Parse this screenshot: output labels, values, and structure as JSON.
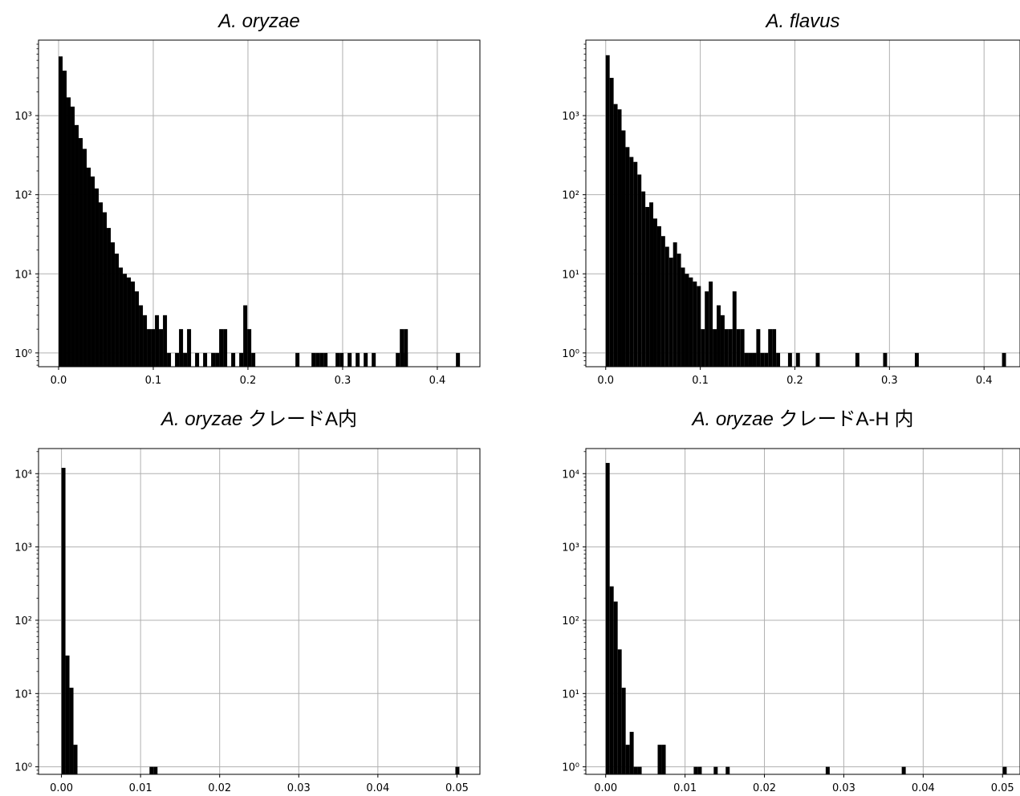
{
  "chart_data": [
    {
      "type": "bar",
      "title": "A. oryzae",
      "title_suffix": "",
      "y_scale": "log",
      "grid": true,
      "xlim": [
        -0.0212,
        0.445
      ],
      "ylim": [
        0.67,
        9000
      ],
      "xticks": [
        0.0,
        0.1,
        0.2,
        0.3,
        0.4
      ],
      "xtick_labels": [
        "0.0",
        "0.1",
        "0.2",
        "0.3",
        "0.4"
      ],
      "yticks": [
        1,
        10,
        100,
        1000
      ],
      "ytick_labels": [
        "10⁰",
        "10¹",
        "10²",
        "10³"
      ],
      "bin_width": 0.00424,
      "bins_x_start": [
        0.0,
        0.00424,
        0.00848,
        0.01272,
        0.01696,
        0.0212,
        0.02544,
        0.02968,
        0.03392,
        0.03816,
        0.0424,
        0.04664,
        0.05088,
        0.05512,
        0.05936,
        0.0636,
        0.06784,
        0.07208,
        0.07632,
        0.08056,
        0.0848,
        0.08904,
        0.09328,
        0.09752,
        0.10176,
        0.106,
        0.11024,
        0.11448,
        0.12296,
        0.1272,
        0.13144,
        0.13568,
        0.14416,
        0.15264,
        0.16112,
        0.16536,
        0.1696,
        0.17384,
        0.18232,
        0.1908,
        0.19504,
        0.19928,
        0.20352,
        0.25016,
        0.26712,
        0.27136,
        0.2756,
        0.27984,
        0.29256,
        0.2968,
        0.30528,
        0.31376,
        0.32224,
        0.33072,
        0.35616,
        0.3604,
        0.36464,
        0.3646,
        0.41968
      ],
      "counts": [
        5600,
        3700,
        1700,
        1300,
        760,
        520,
        380,
        220,
        170,
        120,
        80,
        60,
        38,
        25,
        18,
        12,
        10,
        9,
        8,
        6,
        4,
        3,
        2,
        2,
        3,
        2,
        3,
        1,
        1,
        2,
        1,
        2,
        1,
        1,
        1,
        1,
        2,
        2,
        1,
        1,
        4,
        2,
        1,
        1,
        1,
        1,
        1,
        1,
        1,
        1,
        1,
        1,
        1,
        1,
        1,
        2,
        2,
        1,
        1
      ]
    },
    {
      "type": "bar",
      "title": "A. flavus",
      "title_suffix": "",
      "y_scale": "log",
      "grid": true,
      "xlim": [
        -0.021,
        0.438
      ],
      "ylim": [
        0.67,
        9000
      ],
      "xticks": [
        0.0,
        0.1,
        0.2,
        0.3,
        0.4
      ],
      "xtick_labels": [
        "0.0",
        "0.1",
        "0.2",
        "0.3",
        "0.4"
      ],
      "yticks": [
        1,
        10,
        100,
        1000
      ],
      "ytick_labels": [
        "10⁰",
        "10¹",
        "10²",
        "10³"
      ],
      "bin_width": 0.00419,
      "bins_x_start": [
        0.0,
        0.00419,
        0.00838,
        0.01257,
        0.01676,
        0.02095,
        0.02514,
        0.02933,
        0.03352,
        0.03771,
        0.0419,
        0.04609,
        0.05028,
        0.05447,
        0.05866,
        0.06285,
        0.06704,
        0.07123,
        0.07542,
        0.07961,
        0.0838,
        0.08799,
        0.09218,
        0.09637,
        0.10056,
        0.10475,
        0.10894,
        0.11313,
        0.11732,
        0.12151,
        0.1257,
        0.12989,
        0.13408,
        0.13827,
        0.14246,
        0.14665,
        0.15084,
        0.15503,
        0.15922,
        0.16341,
        0.1676,
        0.17179,
        0.17598,
        0.18017,
        0.19274,
        0.20112,
        0.22207,
        0.26397,
        0.2933,
        0.32682,
        0.419
      ],
      "counts": [
        5800,
        3000,
        1400,
        1200,
        650,
        400,
        300,
        260,
        180,
        110,
        70,
        80,
        50,
        40,
        30,
        22,
        16,
        25,
        18,
        12,
        10,
        9,
        8,
        7,
        2,
        6,
        8,
        2,
        4,
        3,
        2,
        2,
        6,
        2,
        2,
        1,
        1,
        1,
        2,
        1,
        1,
        2,
        2,
        1,
        1,
        1,
        1,
        1,
        1,
        1,
        1
      ]
    },
    {
      "type": "bar",
      "title": "A. oryzae",
      "title_suffix": " クレードA内",
      "y_scale": "log",
      "grid": true,
      "xlim": [
        -0.0029,
        0.0529
      ],
      "ylim": [
        0.79,
        22000
      ],
      "xticks": [
        0.0,
        0.01,
        0.02,
        0.03,
        0.04,
        0.05
      ],
      "xtick_labels": [
        "0.00",
        "0.01",
        "0.02",
        "0.03",
        "0.04",
        "0.05"
      ],
      "yticks": [
        1,
        10,
        100,
        1000,
        10000
      ],
      "ytick_labels": [
        "10⁰",
        "10¹",
        "10²",
        "10³",
        "10⁴"
      ],
      "bin_width": 0.000506,
      "bins_x_start": [
        0.0,
        0.000506,
        0.001012,
        0.001518,
        0.011132,
        0.011638,
        0.0498
      ],
      "counts": [
        12000,
        33,
        12,
        2,
        1,
        1,
        1
      ]
    },
    {
      "type": "bar",
      "title": "A. oryzae",
      "title_suffix": " クレードA-H 内",
      "y_scale": "log",
      "grid": true,
      "xlim": [
        -0.0025,
        0.0522
      ],
      "ylim": [
        0.79,
        22000
      ],
      "xticks": [
        0.0,
        0.01,
        0.02,
        0.03,
        0.04,
        0.05
      ],
      "xtick_labels": [
        "0.00",
        "0.01",
        "0.02",
        "0.03",
        "0.04",
        "0.05"
      ],
      "yticks": [
        1,
        10,
        100,
        1000,
        10000
      ],
      "ytick_labels": [
        "10⁰",
        "10¹",
        "10²",
        "10³",
        "10⁴"
      ],
      "bin_width": 0.000504,
      "bins_x_start": [
        0.0,
        0.000504,
        0.001008,
        0.001512,
        0.002016,
        0.00252,
        0.003024,
        0.003528,
        0.00403,
        0.00655,
        0.00706,
        0.01109,
        0.0116,
        0.01361,
        0.01512,
        0.02772,
        0.0373,
        0.05002
      ],
      "counts": [
        14000,
        290,
        180,
        40,
        12,
        2,
        3,
        1,
        1,
        2,
        2,
        1,
        1,
        1,
        1,
        1,
        1,
        1
      ]
    }
  ]
}
